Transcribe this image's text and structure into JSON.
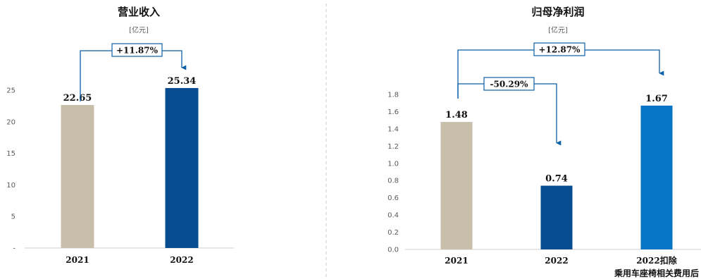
{
  "colors": {
    "beige": "#c8bfaa",
    "navy": "#064c8e",
    "blue": "#0774c6",
    "arrow": "#0b5fa6",
    "axis": "#cfcfcf",
    "divider": "#c8c8c8",
    "tick": "#595959",
    "text": "#111111"
  },
  "chart_data": [
    {
      "type": "bar",
      "title": "营业收入",
      "unit": "[亿元]",
      "categories": [
        "2021",
        "2022"
      ],
      "values": [
        22.65,
        25.34
      ],
      "value_labels": [
        "22.65",
        "25.34"
      ],
      "bar_colors": [
        "#c8bfaa",
        "#064c8e"
      ],
      "ylim": [
        0,
        25
      ],
      "yticks": [
        0,
        5,
        10,
        15,
        20,
        25
      ],
      "ytick_labels": [
        "-",
        "5",
        "10",
        "15",
        "20",
        "25"
      ],
      "annotations": [
        {
          "text": "+11.87%",
          "from": 0,
          "to": 1
        }
      ]
    },
    {
      "type": "bar",
      "title": "归母净利润",
      "unit": "[亿元]",
      "categories": [
        "2021",
        "2022",
        "2022扣除\n乘用车座椅相关费用后"
      ],
      "category_lines": [
        [
          "2021"
        ],
        [
          "2022"
        ],
        [
          "2022扣除",
          "乘用车座椅相关费用后"
        ]
      ],
      "values": [
        1.48,
        0.74,
        1.67
      ],
      "value_labels": [
        "1.48",
        "0.74",
        "1.67"
      ],
      "bar_colors": [
        "#c8bfaa",
        "#064c8e",
        "#0774c6"
      ],
      "ylim": [
        0,
        1.8
      ],
      "yticks": [
        0,
        0.2,
        0.4,
        0.6,
        0.8,
        1.0,
        1.2,
        1.4,
        1.6,
        1.8
      ],
      "ytick_labels": [
        "0.0",
        "0.2",
        "0.4",
        "0.6",
        "0.8",
        "1.0",
        "1.2",
        "1.4",
        "1.6",
        "1.8"
      ],
      "annotations": [
        {
          "text": "+12.87%",
          "from": 0,
          "to": 2
        },
        {
          "text": "-50.29%",
          "from": 0,
          "to": 1
        }
      ]
    }
  ]
}
